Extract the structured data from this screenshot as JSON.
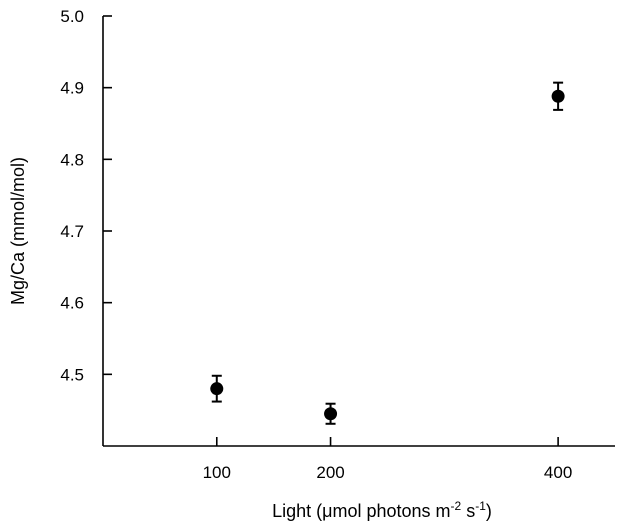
{
  "chart_data": {
    "type": "scatter",
    "title": "",
    "xlabel": {
      "prefix": "Light (",
      "mu": "μ",
      "middle": "mol photons m",
      "sup1": "-2",
      "space": " s",
      "sup2": "-1",
      "suffix": ")"
    },
    "ylabel": "Mg/Ca (mmol/mol)",
    "xlim": [
      0,
      450
    ],
    "ylim": [
      4.4,
      5.0
    ],
    "x_ticks": [
      100,
      200,
      400
    ],
    "y_ticks": [
      4.5,
      4.6,
      4.7,
      4.8,
      4.9,
      5.0
    ],
    "x_tick_labels": [
      "100",
      "200",
      "400"
    ],
    "y_tick_labels": [
      "4.5",
      "4.6",
      "4.7",
      "4.8",
      "4.9",
      "5.0"
    ],
    "grid": false,
    "legend": "none",
    "series": [
      {
        "x": [
          100,
          200,
          400
        ],
        "y": [
          4.48,
          4.445,
          4.888
        ],
        "error": [
          0.018,
          0.014,
          0.019
        ]
      }
    ]
  }
}
